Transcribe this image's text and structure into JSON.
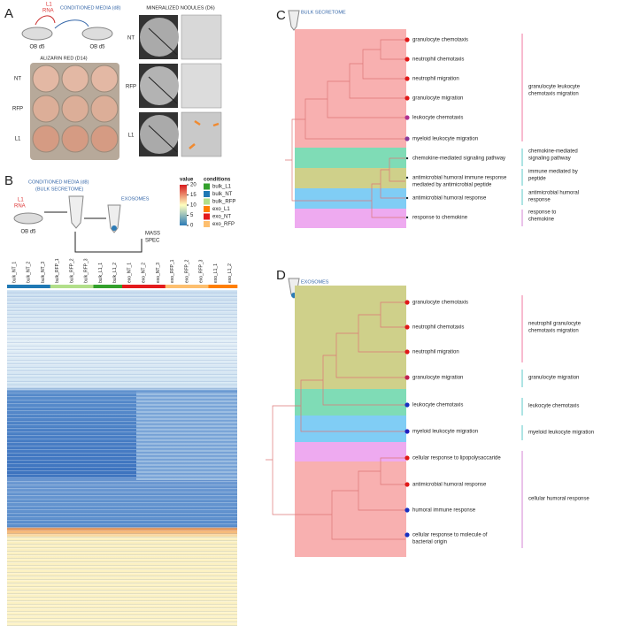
{
  "panel_a": {
    "label": "A",
    "rna": [
      "L1",
      "RNA"
    ],
    "media": "CONDITIONED MEDIA (d8)",
    "source": "OB d5",
    "target": "OB d5",
    "alizarin": {
      "title": "ALIZARIN RED (D14)",
      "rows": [
        "NT",
        "RFP",
        "L1"
      ]
    },
    "nodules": {
      "title": "MINERALIZED NODULES (D6)",
      "rows": [
        "NT",
        "RFP",
        "L1"
      ]
    }
  },
  "panel_b": {
    "label": "B",
    "media": [
      "CONDITIONED MEDIA (d8)",
      "(BULK SECRETOME)"
    ],
    "rna": [
      "L1",
      "RNA"
    ],
    "source": "OB d5",
    "exosomes": "EXOSOMES",
    "mass_spec": [
      "MASS",
      "SPEC"
    ],
    "value_legend": {
      "title": "value",
      "ticks": [
        20,
        15,
        10,
        5,
        0
      ]
    },
    "conditions": {
      "title": "conditions",
      "items": [
        {
          "name": "bulk_L1",
          "color": "#33a02c"
        },
        {
          "name": "bulk_NT",
          "color": "#1f78b4"
        },
        {
          "name": "bulk_RFP",
          "color": "#b2df8a"
        },
        {
          "name": "exo_L1",
          "color": "#ff7f00"
        },
        {
          "name": "exo_NT",
          "color": "#e31a1c"
        },
        {
          "name": "exo_RFP",
          "color": "#fdbf6f"
        }
      ]
    },
    "columns": [
      "bulk_NT_1",
      "bulk_NT_2",
      "bulk_NT_3",
      "bulk_RFP_1",
      "bulk_RFP_2",
      "bulk_RFP_3",
      "bulk_L1_1",
      "bulk_L1_2",
      "exo_NT_1",
      "exo_NT_2",
      "exo_NT_3",
      "exo_RFP_1",
      "exo_RFP_2",
      "exo_RFP_3",
      "exo_L1_1",
      "exo_L1_2"
    ]
  },
  "panel_c": {
    "label": "C",
    "title": "BULK SECRETOME",
    "terms": [
      [
        "granulocyte chemotaxis"
      ],
      [
        "neutrophil chemotaxis"
      ],
      [
        "neutrophil migration"
      ],
      [
        "granulocyte migration"
      ],
      [
        "leukocyte chemotaxis"
      ],
      [
        "myeloid leukocyte migration"
      ],
      [
        "chemokine-mediated signaling pathway"
      ],
      [
        "antimicrobial humoral immune response",
        "mediated by antimicrobial peptide"
      ],
      [
        "antimicrobial humoral response"
      ],
      [
        "response to chemokine"
      ]
    ],
    "groups": [
      [
        "granulocyte leukocyte",
        "chemotaxis migration"
      ],
      [
        "chemokine-mediated",
        "signaling pathway"
      ],
      [
        "immune mediated by",
        "peptide"
      ],
      [
        "antimicrobial humoral",
        "response"
      ],
      [
        "response to",
        "chemokine"
      ]
    ]
  },
  "panel_d": {
    "label": "D",
    "title": "EXOSOMES",
    "terms": [
      [
        "granulocyte chemotaxis"
      ],
      [
        "neutrophil chemotaxis"
      ],
      [
        "neutrophil migration"
      ],
      [
        "granulocyte migration"
      ],
      [
        "leukocyte chemotaxis"
      ],
      [
        "myeloid leukocyte migration"
      ],
      [
        "cellular response to lipopolysaccaride"
      ],
      [
        "antimicrobial humoral response"
      ],
      [
        "humoral immune response"
      ],
      [
        "cellular response to molecule of",
        "bacterial origin"
      ]
    ],
    "groups": [
      [
        "neutrophil granulocyte",
        "chemotaxis migration"
      ],
      [
        "granulocyte migration"
      ],
      [
        "leukocyte chemotaxis"
      ],
      [
        "myeloid leukocyte migration"
      ],
      [
        "cellular humoral response"
      ]
    ]
  }
}
